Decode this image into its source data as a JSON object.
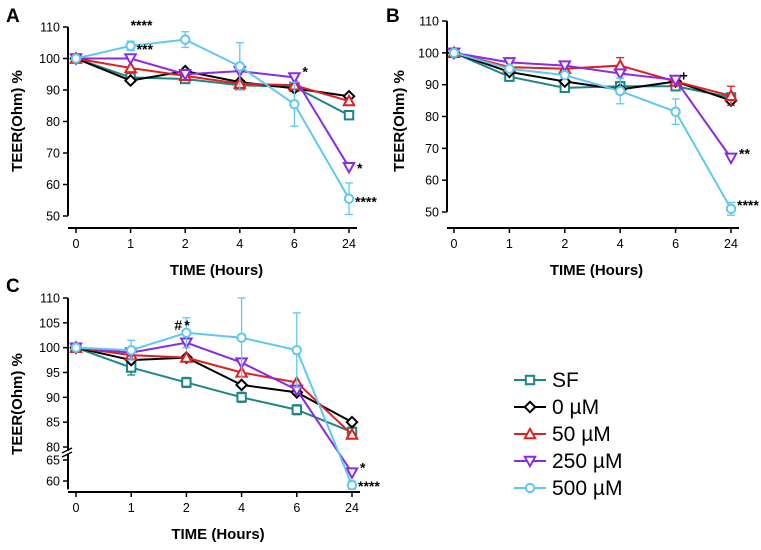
{
  "colors": {
    "SF": "#1e8585",
    "0 µM": "#000000",
    "50 µM": "#e02020",
    "250 µM": "#8a2be2",
    "500 µM": "#5ec8ee"
  },
  "chart_data": [
    {
      "type": "line",
      "panel": "A",
      "title": "",
      "xlabel": "TIME (Hours)",
      "ylabel": "TEER(Ohm) %",
      "categories": [
        "0",
        "1",
        "2",
        "4",
        "6",
        "24"
      ],
      "yticks": [
        50,
        60,
        70,
        80,
        90,
        100,
        110
      ],
      "ylim": [
        50,
        110
      ],
      "series": [
        {
          "name": "SF",
          "values": [
            100,
            94,
            93.5,
            91.5,
            91,
            82
          ],
          "errors": [
            0,
            1,
            1,
            1,
            1.5,
            1
          ]
        },
        {
          "name": "0 µM",
          "values": [
            100,
            93,
            96,
            92.5,
            90.5,
            88
          ],
          "errors": [
            0,
            0,
            0,
            0,
            0,
            0
          ]
        },
        {
          "name": "50 µM",
          "values": [
            100,
            97,
            94.5,
            92,
            91.5,
            86.5
          ],
          "errors": [
            0,
            0,
            0,
            0,
            0,
            0
          ]
        },
        {
          "name": "250 µM",
          "values": [
            100,
            100,
            95,
            96,
            94,
            65.5
          ],
          "errors": [
            0,
            0,
            0,
            0,
            0,
            0
          ]
        },
        {
          "name": "500 µM",
          "values": [
            100,
            104,
            106,
            97.5,
            85.5,
            55.5
          ],
          "errors": [
            0,
            1.5,
            2.5,
            7.5,
            7,
            5
          ]
        }
      ],
      "annotations": [
        {
          "text": "****",
          "category": "1",
          "value": 106.5
        },
        {
          "text": "***",
          "category": "1",
          "value": 101.5
        },
        {
          "text": "*",
          "category": "6",
          "value": 95
        },
        {
          "text": "*",
          "category": "24",
          "value": 65
        },
        {
          "text": "****",
          "category": "24",
          "value": 55
        }
      ]
    },
    {
      "type": "line",
      "panel": "B",
      "title": "",
      "xlabel": "TIME (Hours)",
      "ylabel": "TEER(Ohm) %",
      "categories": [
        "0",
        "1",
        "2",
        "4",
        "6",
        "24"
      ],
      "yticks": [
        50,
        60,
        70,
        80,
        90,
        100,
        110
      ],
      "ylim": [
        50,
        110
      ],
      "series": [
        {
          "name": "SF",
          "values": [
            100,
            92.5,
            89,
            89.5,
            89.5,
            86
          ],
          "errors": [
            0,
            1,
            1,
            1,
            1,
            1
          ]
        },
        {
          "name": "0 µM",
          "values": [
            100,
            94,
            91,
            88.5,
            91,
            85
          ],
          "errors": [
            0,
            0,
            0,
            0,
            0,
            0
          ]
        },
        {
          "name": "50 µM",
          "values": [
            100,
            95.5,
            95,
            96,
            91,
            86.5
          ],
          "errors": [
            0,
            0,
            1.5,
            2.5,
            1,
            3
          ]
        },
        {
          "name": "250 µM",
          "values": [
            100,
            97,
            96,
            93.5,
            91.5,
            67
          ],
          "errors": [
            0,
            0,
            0,
            0,
            0,
            0
          ]
        },
        {
          "name": "500 µM",
          "values": [
            100,
            95,
            93,
            88,
            81.5,
            51
          ],
          "errors": [
            0,
            0,
            0,
            4,
            4,
            2
          ]
        }
      ],
      "annotations": [
        {
          "text": "+",
          "category": "6",
          "value": 92
        },
        {
          "text": "**",
          "category": "24",
          "value": 68
        },
        {
          "text": "****",
          "category": "24",
          "value": 52.5
        }
      ]
    },
    {
      "type": "line",
      "panel": "C",
      "title": "",
      "xlabel": "TIME (Hours)",
      "ylabel": "TEER(Ohm) %",
      "categories": [
        "0",
        "1",
        "2",
        "4",
        "6",
        "24"
      ],
      "axis_break": {
        "between": [
          65,
          80
        ]
      },
      "yticks": [
        60,
        65,
        80,
        85,
        90,
        95,
        100,
        105,
        110
      ],
      "ylim": [
        58,
        110
      ],
      "series": [
        {
          "name": "SF",
          "values": [
            100,
            96,
            93,
            90,
            87.5,
            83
          ],
          "errors": [
            0,
            1.5,
            1,
            1,
            1,
            1
          ]
        },
        {
          "name": "0 µM",
          "values": [
            100,
            97.5,
            98,
            92.5,
            91,
            85
          ],
          "errors": [
            0,
            0,
            0,
            0,
            0,
            0
          ]
        },
        {
          "name": "50 µM",
          "values": [
            100,
            98.5,
            98,
            95,
            93,
            82.5
          ],
          "errors": [
            0,
            0,
            0,
            0,
            0,
            0
          ]
        },
        {
          "name": "250 µM",
          "values": [
            100,
            99,
            101,
            97,
            91.5,
            62
          ],
          "errors": [
            0,
            0,
            0,
            0,
            0,
            0
          ]
        },
        {
          "name": "500 µM",
          "values": [
            100,
            99.5,
            103,
            102,
            99.5,
            59
          ],
          "errors": [
            0,
            2,
            3,
            8,
            7.5,
            1
          ]
        }
      ],
      "annotations": [
        {
          "text": "#",
          "category": "2",
          "value": 104
        },
        {
          "text": "*",
          "category": "2",
          "value": 104
        },
        {
          "text": "*",
          "category": "24",
          "value": 63
        },
        {
          "text": "****",
          "category": "24",
          "value": 59
        }
      ]
    }
  ],
  "legend": {
    "location": "lower-right",
    "entries": [
      {
        "name": "SF",
        "label": "SF",
        "marker": "square"
      },
      {
        "name": "0 µM",
        "label": "0 µM",
        "marker": "diamond"
      },
      {
        "name": "50 µM",
        "label": "50 µM",
        "marker": "triangle-up"
      },
      {
        "name": "250 µM",
        "label": "250 µM",
        "marker": "triangle-down"
      },
      {
        "name": "500 µM",
        "label": "500 µM",
        "marker": "circle"
      }
    ]
  }
}
